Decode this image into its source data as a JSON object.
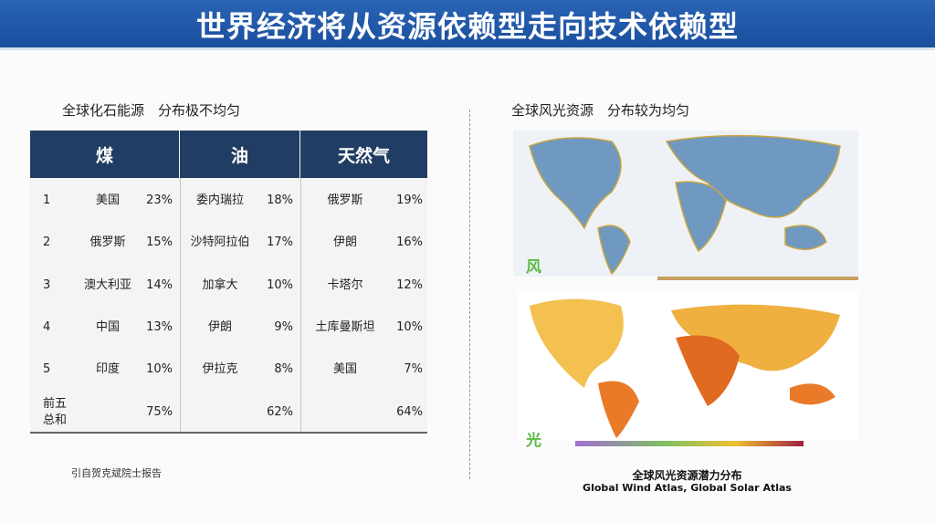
{
  "header": {
    "title": "世界经济将从资源依赖型走向技术依赖型"
  },
  "left": {
    "subtitle": "全球化石能源　分布极不均匀",
    "source": "引自贺克斌院士报告"
  },
  "table": {
    "headers": [
      "煤",
      "油",
      "天然气"
    ],
    "rows": [
      [
        "1",
        "美国",
        "23%",
        "委内瑞拉",
        "18%",
        "俄罗斯",
        "19%"
      ],
      [
        "2",
        "俄罗斯",
        "15%",
        "沙特阿拉伯",
        "17%",
        "伊朗",
        "16%"
      ],
      [
        "3",
        "澳大利亚",
        "14%",
        "加拿大",
        "10%",
        "卡塔尔",
        "12%"
      ],
      [
        "4",
        "中国",
        "13%",
        "伊朗",
        "9%",
        "土库曼斯坦",
        "10%"
      ],
      [
        "5",
        "印度",
        "10%",
        "伊拉克",
        "8%",
        "美国",
        "7%"
      ],
      [
        "前五\n总和",
        null,
        "75%",
        null,
        "62%",
        null,
        "64%"
      ]
    ]
  },
  "right": {
    "subtitle": "全球风光资源　分布较为均匀",
    "wind_label": "风",
    "solar_label": "光",
    "caption": "全球风光资源潜力分布",
    "credit": "Global Wind Atlas, Global Solar Atlas"
  }
}
